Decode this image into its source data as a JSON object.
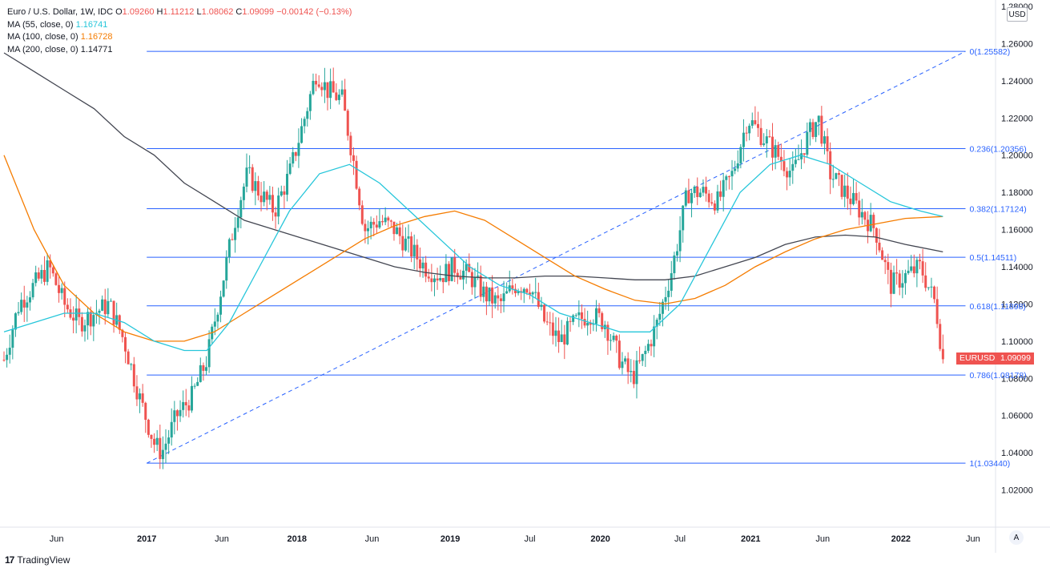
{
  "legend": {
    "title": "Euro / U.S. Dollar, 1W, IDC",
    "o_label": "O",
    "o_value": "1.09260",
    "h_label": "H",
    "h_value": "1.11212",
    "l_label": "L",
    "l_value": "1.08062",
    "c_label": "C",
    "c_value": "1.09099",
    "change": "−0.00142 (−0.13%)",
    "ma55_label": "MA (55, close, 0)",
    "ma55_value": "1.16741",
    "ma100_label": "MA (100, close, 0)",
    "ma100_value": "1.16728",
    "ma200_label": "MA (200, close, 0)",
    "ma200_value": "1.14771"
  },
  "currency_button": "USD",
  "auto_scale_button": "A",
  "symbol_tag": "EURUSD",
  "price_tag": "1.09099",
  "branding": "TradingView",
  "colors": {
    "up": "#26a69a",
    "down": "#ef5350",
    "fib": "#2962ff",
    "ma55": "#26c6da",
    "ma100": "#f57c00",
    "ma200": "#434651"
  },
  "chart_data": {
    "type": "candlestick",
    "symbol": "EURUSD",
    "timeframe": "1W",
    "ylim": [
      1.0,
      1.28
    ],
    "yticks": [
      "1.28000",
      "1.26000",
      "1.24000",
      "1.22000",
      "1.20000",
      "1.18000",
      "1.16000",
      "1.14000",
      "1.12000",
      "1.10000",
      "1.08000",
      "1.06000",
      "1.04000",
      "1.02000"
    ],
    "ytick_values": [
      1.28,
      1.26,
      1.24,
      1.22,
      1.2,
      1.18,
      1.16,
      1.14,
      1.12,
      1.1,
      1.08,
      1.06,
      1.04,
      1.02
    ],
    "xticks": [
      {
        "label": "Jun",
        "t": 0.0
      },
      {
        "label": "2017",
        "t": 0.0
      },
      {
        "label": "Jun",
        "t": 0.0
      },
      {
        "label": "2018",
        "t": 0.0
      },
      {
        "label": "Jun",
        "t": 0.0
      },
      {
        "label": "2019",
        "t": 0.0
      },
      {
        "label": "Jul",
        "t": 0.0
      },
      {
        "label": "2020",
        "t": 0.0
      },
      {
        "label": "Jul",
        "t": 0.0
      },
      {
        "label": "2021",
        "t": 0.0
      },
      {
        "label": "Jun",
        "t": 0.0
      },
      {
        "label": "2022",
        "t": 0.0
      },
      {
        "label": "Jun",
        "t": 0.0
      }
    ],
    "fib_levels": [
      {
        "ratio": "0",
        "value": 1.25582,
        "label": "0(1.25582)"
      },
      {
        "ratio": "0.236",
        "value": 1.20356,
        "label": "0.236(1.20356)"
      },
      {
        "ratio": "0.382",
        "value": 1.17124,
        "label": "0.382(1.17124)"
      },
      {
        "ratio": "0.5",
        "value": 1.14511,
        "label": "0.5(1.14511)"
      },
      {
        "ratio": "0.618",
        "value": 1.11898,
        "label": "0.618(1.11898)"
      },
      {
        "ratio": "0.786",
        "value": 1.08178,
        "label": "0.786(1.08178)"
      },
      {
        "ratio": "1",
        "value": 1.0344,
        "label": "1(1.03440)"
      }
    ],
    "trend_line": {
      "from": [
        2016.95,
        1.0344
      ],
      "to": [
        2022.4,
        1.25582
      ]
    },
    "price_series": [
      [
        2016.0,
        1.09
      ],
      [
        2016.1,
        1.12
      ],
      [
        2016.2,
        1.13
      ],
      [
        2016.3,
        1.14
      ],
      [
        2016.4,
        1.12
      ],
      [
        2016.5,
        1.11
      ],
      [
        2016.6,
        1.115
      ],
      [
        2016.7,
        1.12
      ],
      [
        2016.8,
        1.1
      ],
      [
        2016.9,
        1.07
      ],
      [
        2017.0,
        1.045
      ],
      [
        2017.05,
        1.04
      ],
      [
        2017.15,
        1.06
      ],
      [
        2017.25,
        1.07
      ],
      [
        2017.35,
        1.09
      ],
      [
        2017.45,
        1.13
      ],
      [
        2017.55,
        1.17
      ],
      [
        2017.62,
        1.19
      ],
      [
        2017.7,
        1.18
      ],
      [
        2017.8,
        1.17
      ],
      [
        2017.9,
        1.19
      ],
      [
        2018.0,
        1.22
      ],
      [
        2018.08,
        1.245
      ],
      [
        2018.15,
        1.235
      ],
      [
        2018.25,
        1.23
      ],
      [
        2018.32,
        1.2
      ],
      [
        2018.4,
        1.16
      ],
      [
        2018.5,
        1.165
      ],
      [
        2018.6,
        1.16
      ],
      [
        2018.7,
        1.15
      ],
      [
        2018.8,
        1.14
      ],
      [
        2018.9,
        1.135
      ],
      [
        2019.0,
        1.14
      ],
      [
        2019.1,
        1.135
      ],
      [
        2019.2,
        1.125
      ],
      [
        2019.3,
        1.12
      ],
      [
        2019.4,
        1.13
      ],
      [
        2019.5,
        1.13
      ],
      [
        2019.6,
        1.11
      ],
      [
        2019.7,
        1.1
      ],
      [
        2019.8,
        1.11
      ],
      [
        2019.9,
        1.115
      ],
      [
        2020.0,
        1.11
      ],
      [
        2020.1,
        1.09
      ],
      [
        2020.18,
        1.08
      ],
      [
        2020.25,
        1.09
      ],
      [
        2020.35,
        1.11
      ],
      [
        2020.45,
        1.14
      ],
      [
        2020.55,
        1.18
      ],
      [
        2020.65,
        1.18
      ],
      [
        2020.75,
        1.175
      ],
      [
        2020.85,
        1.19
      ],
      [
        2020.95,
        1.22
      ],
      [
        2021.05,
        1.21
      ],
      [
        2021.15,
        1.2
      ],
      [
        2021.25,
        1.19
      ],
      [
        2021.35,
        1.21
      ],
      [
        2021.42,
        1.22
      ],
      [
        2021.5,
        1.19
      ],
      [
        2021.6,
        1.18
      ],
      [
        2021.7,
        1.17
      ],
      [
        2021.8,
        1.16
      ],
      [
        2021.9,
        1.13
      ],
      [
        2022.0,
        1.135
      ],
      [
        2022.1,
        1.14
      ],
      [
        2022.15,
        1.13
      ],
      [
        2022.2,
        1.12
      ],
      [
        2022.25,
        1.09
      ]
    ],
    "ma55": [
      [
        2016.0,
        1.105
      ],
      [
        2016.2,
        1.11
      ],
      [
        2016.4,
        1.115
      ],
      [
        2016.6,
        1.115
      ],
      [
        2016.8,
        1.11
      ],
      [
        2017.0,
        1.1
      ],
      [
        2017.2,
        1.095
      ],
      [
        2017.35,
        1.095
      ],
      [
        2017.5,
        1.11
      ],
      [
        2017.7,
        1.14
      ],
      [
        2017.9,
        1.17
      ],
      [
        2018.1,
        1.19
      ],
      [
        2018.3,
        1.195
      ],
      [
        2018.5,
        1.185
      ],
      [
        2018.7,
        1.17
      ],
      [
        2018.9,
        1.155
      ],
      [
        2019.1,
        1.14
      ],
      [
        2019.3,
        1.13
      ],
      [
        2019.5,
        1.125
      ],
      [
        2019.7,
        1.115
      ],
      [
        2019.9,
        1.11
      ],
      [
        2020.1,
        1.105
      ],
      [
        2020.3,
        1.105
      ],
      [
        2020.5,
        1.12
      ],
      [
        2020.7,
        1.15
      ],
      [
        2020.9,
        1.18
      ],
      [
        2021.1,
        1.195
      ],
      [
        2021.3,
        1.2
      ],
      [
        2021.5,
        1.195
      ],
      [
        2021.7,
        1.185
      ],
      [
        2021.9,
        1.175
      ],
      [
        2022.1,
        1.17
      ],
      [
        2022.25,
        1.167
      ]
    ],
    "ma100": [
      [
        2016.0,
        1.2
      ],
      [
        2016.2,
        1.16
      ],
      [
        2016.4,
        1.13
      ],
      [
        2016.6,
        1.115
      ],
      [
        2016.8,
        1.105
      ],
      [
        2017.0,
        1.1
      ],
      [
        2017.2,
        1.1
      ],
      [
        2017.4,
        1.105
      ],
      [
        2017.6,
        1.115
      ],
      [
        2017.8,
        1.125
      ],
      [
        2018.0,
        1.135
      ],
      [
        2018.2,
        1.145
      ],
      [
        2018.4,
        1.155
      ],
      [
        2018.6,
        1.162
      ],
      [
        2018.8,
        1.167
      ],
      [
        2019.0,
        1.17
      ],
      [
        2019.2,
        1.165
      ],
      [
        2019.4,
        1.155
      ],
      [
        2019.6,
        1.145
      ],
      [
        2019.8,
        1.135
      ],
      [
        2020.0,
        1.128
      ],
      [
        2020.2,
        1.122
      ],
      [
        2020.4,
        1.12
      ],
      [
        2020.6,
        1.123
      ],
      [
        2020.8,
        1.13
      ],
      [
        2021.0,
        1.14
      ],
      [
        2021.2,
        1.148
      ],
      [
        2021.4,
        1.155
      ],
      [
        2021.6,
        1.16
      ],
      [
        2021.8,
        1.163
      ],
      [
        2022.0,
        1.166
      ],
      [
        2022.25,
        1.167
      ]
    ],
    "ma200": [
      [
        2016.0,
        1.255
      ],
      [
        2016.2,
        1.245
      ],
      [
        2016.4,
        1.235
      ],
      [
        2016.6,
        1.225
      ],
      [
        2016.8,
        1.21
      ],
      [
        2017.0,
        1.2
      ],
      [
        2017.2,
        1.185
      ],
      [
        2017.4,
        1.175
      ],
      [
        2017.6,
        1.165
      ],
      [
        2017.8,
        1.16
      ],
      [
        2018.0,
        1.155
      ],
      [
        2018.2,
        1.15
      ],
      [
        2018.4,
        1.145
      ],
      [
        2018.6,
        1.14
      ],
      [
        2018.8,
        1.137
      ],
      [
        2019.0,
        1.135
      ],
      [
        2019.2,
        1.134
      ],
      [
        2019.4,
        1.134
      ],
      [
        2019.6,
        1.135
      ],
      [
        2019.8,
        1.135
      ],
      [
        2020.0,
        1.134
      ],
      [
        2020.2,
        1.133
      ],
      [
        2020.4,
        1.133
      ],
      [
        2020.6,
        1.135
      ],
      [
        2020.8,
        1.14
      ],
      [
        2021.0,
        1.145
      ],
      [
        2021.2,
        1.152
      ],
      [
        2021.4,
        1.156
      ],
      [
        2021.6,
        1.157
      ],
      [
        2021.8,
        1.156
      ],
      [
        2022.0,
        1.152
      ],
      [
        2022.25,
        1.148
      ]
    ],
    "last_price": 1.09099
  }
}
